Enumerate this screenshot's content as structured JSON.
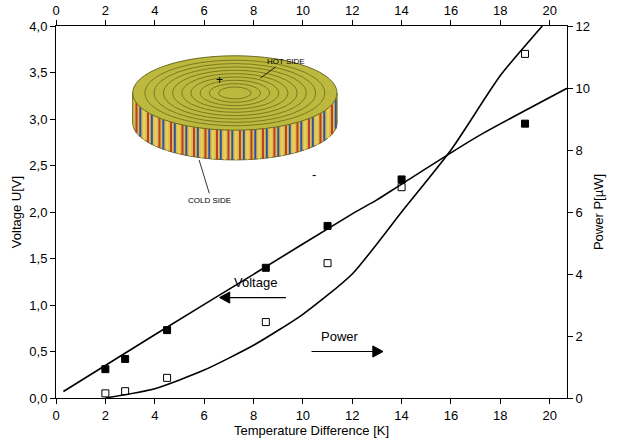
{
  "chart_data": {
    "type": "scatter",
    "x_label": "Temperature Difference [K]",
    "y_label": "Voltage U[V]",
    "y2_label": "Power P[µW]",
    "xlim": [
      0,
      20.7
    ],
    "xticks": [
      0,
      2,
      4,
      6,
      8,
      10,
      12,
      14,
      16,
      18,
      20
    ],
    "ylim": [
      0,
      4
    ],
    "yticks": [
      {
        "value": 0,
        "label": "0,0"
      },
      {
        "value": 0.5,
        "label": "0,5"
      },
      {
        "value": 1,
        "label": "1,0"
      },
      {
        "value": 1.5,
        "label": "1,5"
      },
      {
        "value": 2,
        "label": "2,0"
      },
      {
        "value": 2.5,
        "label": "2,5"
      },
      {
        "value": 3,
        "label": "3,0"
      },
      {
        "value": 3.5,
        "label": "3,5"
      },
      {
        "value": 4,
        "label": "4,0"
      }
    ],
    "y2lim": [
      0,
      12
    ],
    "y2ticks": [
      0,
      2,
      4,
      6,
      8,
      10,
      12
    ],
    "grid": false,
    "series": [
      {
        "name": "Voltage",
        "type": "scatter",
        "marker": "square",
        "color": "#000000",
        "x": [
          2,
          2.8,
          4.5,
          8.5,
          11,
          14,
          19
        ],
        "values": [
          0.31,
          0.42,
          0.73,
          1.4,
          1.85,
          2.35,
          2.95
        ]
      },
      {
        "name": "Power",
        "type": "scatter",
        "marker": "square-open",
        "color": "#000000",
        "axis": "y2",
        "x": [
          2,
          2.8,
          4.5,
          8.5,
          11,
          14,
          19
        ],
        "values": [
          0.15,
          0.22,
          0.65,
          2.45,
          4.35,
          6.8,
          11.1
        ]
      },
      {
        "type": "line",
        "color": "#000000",
        "x": [
          0.3,
          4,
          8,
          12,
          13,
          14,
          17,
          20.7
        ],
        "values": [
          0.07,
          0.68,
          1.33,
          1.98,
          2.13,
          2.3,
          2.8,
          3.33
        ]
      },
      {
        "type": "line",
        "color": "#000000",
        "axis": "y2",
        "x": [
          2,
          4,
          6,
          8,
          10,
          12,
          14,
          16,
          18,
          19.7
        ],
        "values": [
          0,
          0.3,
          0.9,
          1.7,
          2.7,
          4.0,
          6.0,
          8.0,
          10.4,
          12
        ]
      }
    ],
    "annotations": [
      "Voltage",
      "Power",
      "+",
      "HOT SIDE",
      "COLD SIDE",
      "-"
    ]
  }
}
